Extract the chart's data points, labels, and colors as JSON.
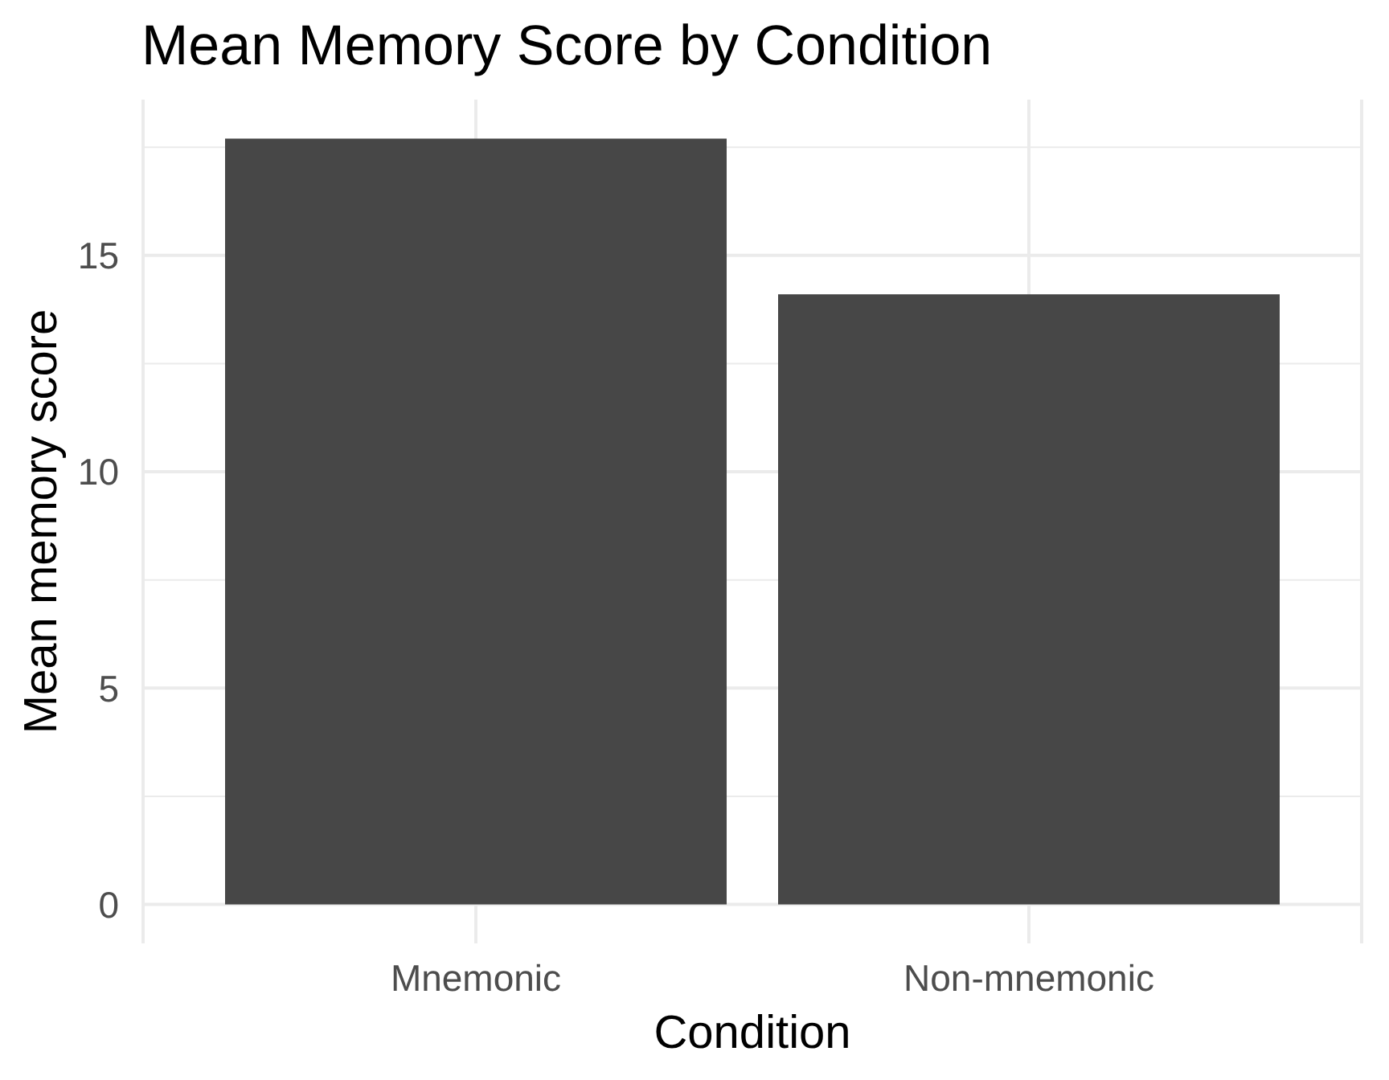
{
  "chart_data": {
    "type": "bar",
    "title": "Mean Memory Score by Condition",
    "xlabel": "Condition",
    "ylabel": "Mean memory score",
    "categories": [
      "Mnemonic",
      "Non-mnemonic"
    ],
    "values": [
      17.7,
      14.1
    ],
    "color": "#474747",
    "ylim": [
      -0.9,
      18.6
    ],
    "yticks": [
      0,
      {
        "value": 2.5,
        "label": null
      },
      5,
      {
        "value": 7.5,
        "label": null
      },
      10,
      {
        "value": 12.5,
        "label": null
      },
      15,
      {
        "value": 17.5,
        "label": null
      }
    ],
    "grid": true
  }
}
